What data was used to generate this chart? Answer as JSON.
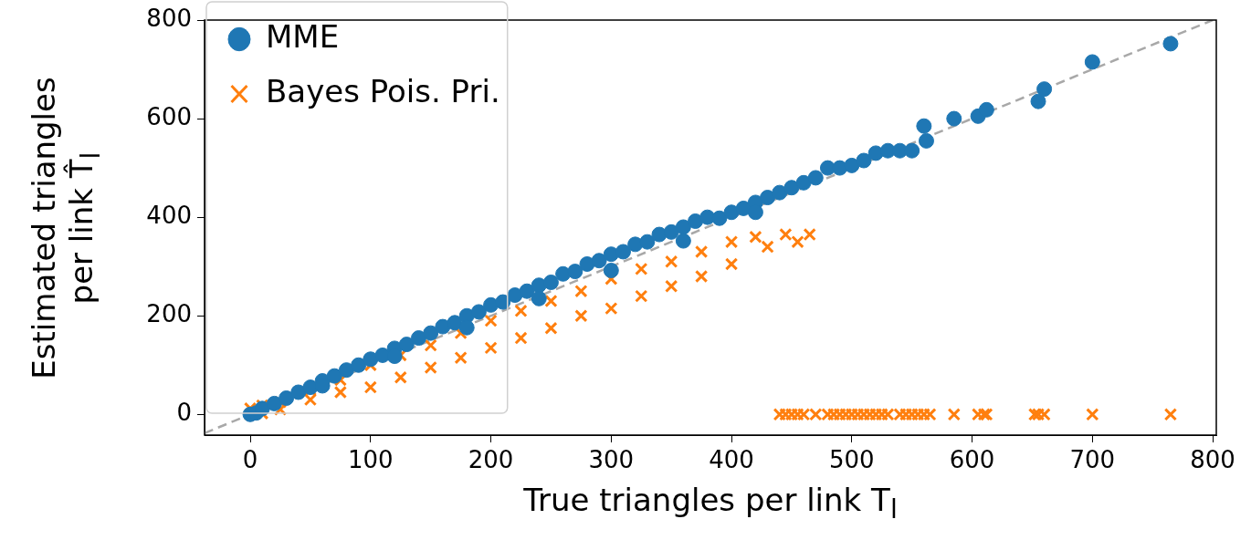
{
  "chart_data": {
    "type": "scatter",
    "xlabel": "True triangles per link T$_{l}$",
    "ylabel": "Estimated triangles\nper link T̂$_{l}$",
    "xlim": [
      -38,
      803
    ],
    "ylim": [
      -42,
      800
    ],
    "xticks": [
      0,
      100,
      200,
      300,
      400,
      500,
      600,
      700,
      800
    ],
    "yticks": [
      0,
      200,
      400,
      600,
      800
    ],
    "grid": false,
    "legend": "top left",
    "series": [
      {
        "name": "MME",
        "color": "#1f77b4",
        "marker": "circle",
        "x": [
          0,
          5,
          10,
          20,
          30,
          40,
          50,
          60,
          70,
          80,
          90,
          100,
          110,
          120,
          130,
          140,
          150,
          160,
          170,
          180,
          190,
          200,
          210,
          220,
          230,
          240,
          250,
          260,
          270,
          280,
          290,
          300,
          310,
          320,
          330,
          340,
          350,
          360,
          370,
          380,
          390,
          400,
          410,
          420,
          430,
          440,
          450,
          460,
          470,
          480,
          490,
          500,
          510,
          520,
          530,
          540,
          550,
          560,
          562,
          585,
          605,
          612,
          655,
          660,
          700,
          765,
          60,
          120,
          180,
          240,
          300,
          360,
          420
        ],
        "values": [
          0,
          3,
          12,
          22,
          33,
          45,
          55,
          68,
          78,
          90,
          100,
          112,
          120,
          134,
          142,
          155,
          165,
          178,
          186,
          200,
          208,
          222,
          228,
          242,
          250,
          262,
          268,
          285,
          290,
          305,
          312,
          325,
          330,
          345,
          350,
          365,
          370,
          380,
          392,
          400,
          398,
          410,
          418,
          430,
          440,
          450,
          460,
          470,
          480,
          500,
          500,
          505,
          515,
          530,
          535,
          535,
          535,
          585,
          555,
          600,
          605,
          618,
          635,
          660,
          715,
          752,
          58,
          118,
          176,
          235,
          292,
          352,
          410
        ]
      },
      {
        "name": "Bayes Pois. Pri.",
        "color": "#ff7f0e",
        "marker": "cross",
        "x": [
          0,
          0,
          10,
          10,
          25,
          25,
          50,
          50,
          75,
          75,
          100,
          100,
          125,
          125,
          150,
          150,
          175,
          175,
          200,
          200,
          225,
          225,
          250,
          250,
          275,
          275,
          300,
          300,
          325,
          325,
          350,
          350,
          375,
          375,
          400,
          400,
          420,
          430,
          445,
          465,
          455,
          440,
          445,
          450,
          455,
          460,
          470,
          480,
          485,
          490,
          495,
          500,
          505,
          510,
          515,
          520,
          525,
          530,
          540,
          545,
          550,
          555,
          560,
          565,
          585,
          605,
          610,
          612,
          652,
          655,
          660,
          700,
          765
        ],
        "values": [
          0,
          12,
          18,
          2,
          25,
          10,
          50,
          30,
          70,
          45,
          100,
          55,
          120,
          75,
          140,
          95,
          165,
          115,
          190,
          135,
          210,
          155,
          230,
          175,
          250,
          200,
          275,
          215,
          295,
          240,
          310,
          260,
          330,
          280,
          350,
          305,
          360,
          340,
          365,
          365,
          350,
          0,
          0,
          0,
          0,
          0,
          0,
          0,
          0,
          0,
          0,
          0,
          0,
          0,
          0,
          0,
          0,
          0,
          0,
          0,
          0,
          0,
          0,
          0,
          0,
          0,
          0,
          0,
          0,
          0,
          0,
          0,
          0
        ]
      },
      {
        "type": "line",
        "color": "#a8a8a8",
        "marker": "none",
        "line_style": "dashed",
        "x": [
          -38,
          800
        ],
        "values": [
          -38,
          800
        ]
      }
    ]
  }
}
